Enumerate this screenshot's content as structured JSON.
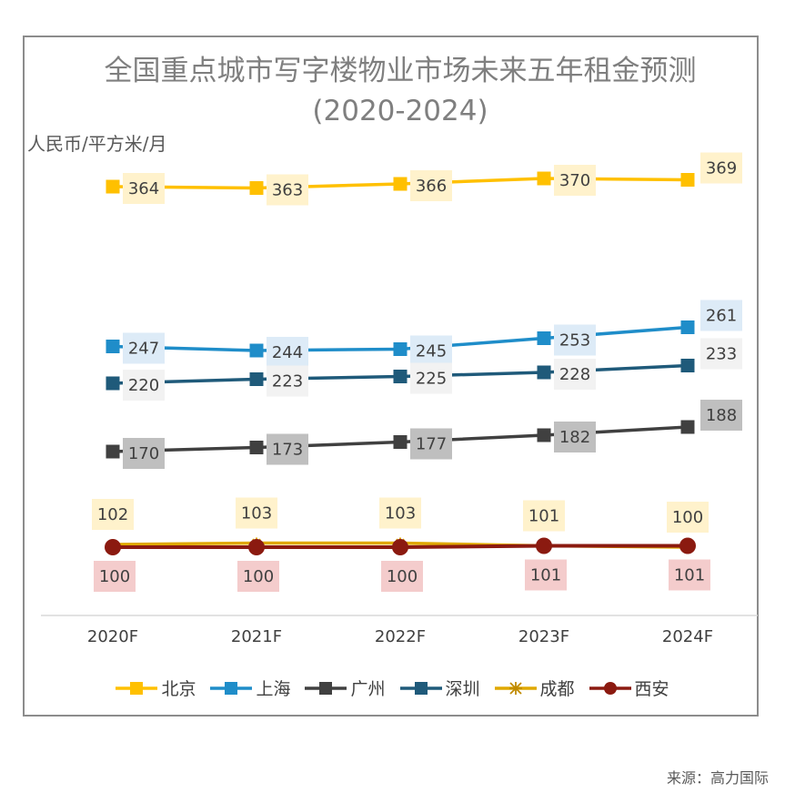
{
  "chart_data": {
    "type": "line",
    "title": "全国重点城市写字楼物业市场未来五年租金预测",
    "subtitle": "(2020-2024)",
    "ylabel": "人民币/平方米/月",
    "xlabel": "",
    "categories": [
      "2020F",
      "2021F",
      "2022F",
      "2023F",
      "2024F"
    ],
    "ylim": [
      80,
      400
    ],
    "grid": false,
    "legend_position": "bottom",
    "series": [
      {
        "name": "北京",
        "values": [
          364,
          363,
          366,
          370,
          369
        ],
        "color": "#ffc000",
        "marker": "square",
        "label_bg": "#fff2cc",
        "label_side": "right"
      },
      {
        "name": "上海",
        "values": [
          247,
          244,
          245,
          253,
          261
        ],
        "color": "#1f8dc9",
        "marker": "square",
        "label_bg": "#ddebf7",
        "label_side": "right"
      },
      {
        "name": "广州",
        "values": [
          170,
          173,
          177,
          182,
          188
        ],
        "color": "#404040",
        "marker": "square",
        "label_bg": "#bfbfbf",
        "label_side": "right"
      },
      {
        "name": "深圳",
        "values": [
          220,
          223,
          225,
          228,
          233
        ],
        "color": "#1f5a7a",
        "marker": "square",
        "label_bg": "#f2f2f2",
        "label_side": "right"
      },
      {
        "name": "成都",
        "values": [
          102,
          103,
          103,
          101,
          100
        ],
        "color": "#e0a800",
        "marker": "star",
        "label_bg": "#fff2cc",
        "label_side": "above"
      },
      {
        "name": "西安",
        "values": [
          100,
          100,
          100,
          101,
          101
        ],
        "color": "#8b1a10",
        "marker": "circle",
        "label_bg": "#f4cccc",
        "label_side": "below"
      }
    ]
  },
  "source_note": "来源：高力国际"
}
